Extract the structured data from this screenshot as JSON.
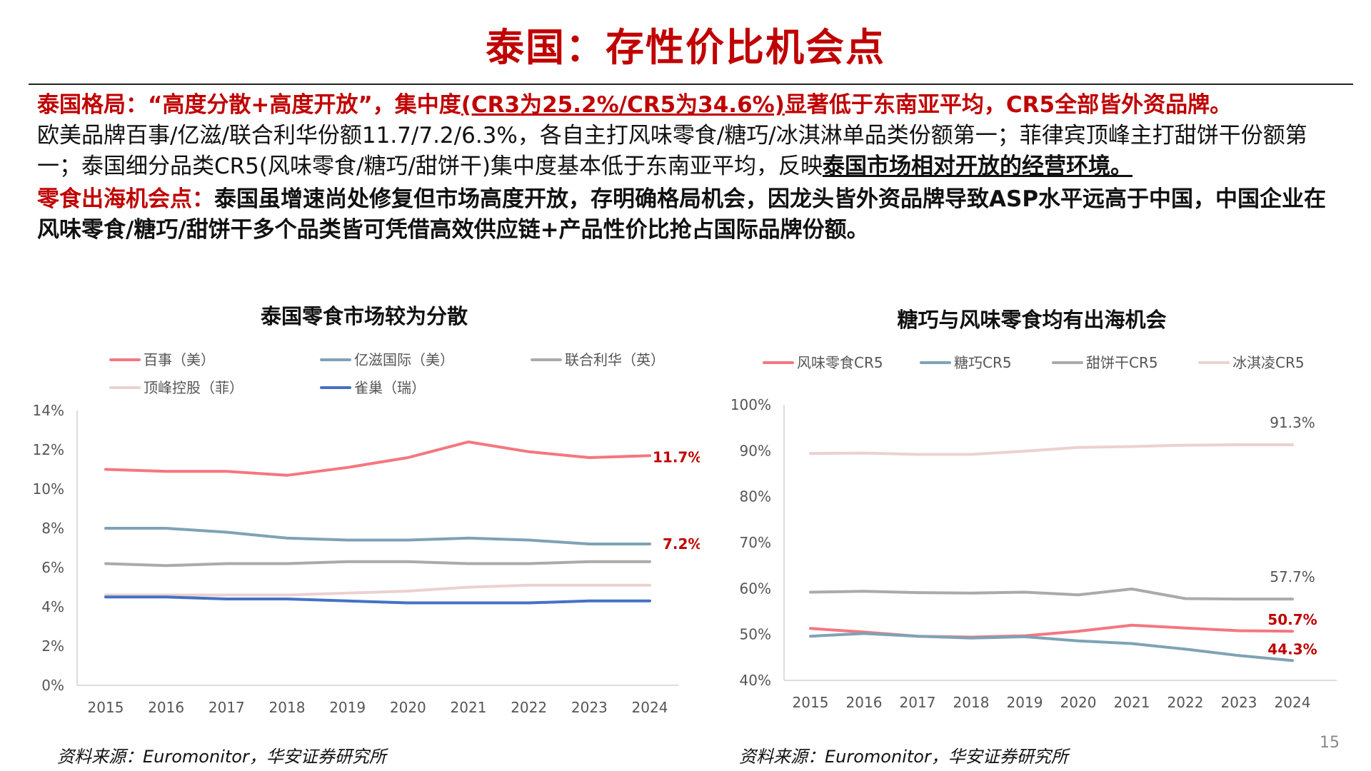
{
  "page": {
    "title": "泰国：存性价比机会点",
    "page_number": "15"
  },
  "text": {
    "p1_label": "泰国格局：",
    "p1_lead": "“高度分散+高度开放”，集中度",
    "p1_underlined": "(CR3为25.2%/CR5为34.6%)",
    "p1_tail": "显著低于东南亚平均，CR5全部皆外资品牌。",
    "p2_normal": "欧美品牌百事/亿滋/联合利华份额11.7/7.2/6.3%，各自主打风味零食/糖巧/冰淇淋单品类份额第一；菲律宾顶峰主打甜饼干份额第一；泰国细分品类CR5(风味零食/糖巧/甜饼干)集中度基本低于东南亚平均，反映",
    "p2_emph": "泰国市场相对开放的经营环境。",
    "p3_label": "零食出海机会点：",
    "p3_body": "泰国虽增速尚处修复但市场高度开放，存明确格局机会，因龙头皆外资品牌导致ASP水平远高于中国，中国企业在风味零食/糖巧/甜饼干多个品类皆可凭借高效供应链+产品性价比抢占国际品牌份额。"
  },
  "source_left": "资料来源：Euromonitor，华安证券研究所",
  "source_right": "资料来源：Euromonitor，华安证券研究所",
  "chart_data": [
    {
      "type": "line",
      "title": "泰国零食市场较为分散",
      "x": [
        "2015",
        "2016",
        "2017",
        "2018",
        "2019",
        "2020",
        "2021",
        "2022",
        "2023",
        "2024"
      ],
      "ylim": [
        0,
        14
      ],
      "yticks": [
        "0%",
        "2%",
        "4%",
        "6%",
        "8%",
        "10%",
        "12%",
        "14%"
      ],
      "ytick_values": [
        0,
        2,
        4,
        6,
        8,
        10,
        12,
        14
      ],
      "grid": false,
      "legend": "top",
      "series": [
        {
          "name": "百事（美）",
          "color": "#f4777f",
          "values": [
            11.0,
            10.9,
            10.9,
            10.7,
            11.1,
            11.6,
            12.4,
            11.9,
            11.6,
            11.7
          ],
          "end_label": "11.7%",
          "end_label_color": "#c00000"
        },
        {
          "name": "亿滋国际（美）",
          "color": "#7fa2b5",
          "values": [
            8.0,
            8.0,
            7.8,
            7.5,
            7.4,
            7.4,
            7.5,
            7.4,
            7.2,
            7.2
          ],
          "end_label": "7.2%",
          "end_label_color": "#c00000"
        },
        {
          "name": "联合利华（英）",
          "color": "#aaaaaa",
          "values": [
            6.2,
            6.1,
            6.2,
            6.2,
            6.3,
            6.3,
            6.2,
            6.2,
            6.3,
            6.3
          ]
        },
        {
          "name": "顶峰控股（菲）",
          "color": "#ecd1d1",
          "values": [
            4.6,
            4.6,
            4.6,
            4.6,
            4.7,
            4.8,
            5.0,
            5.1,
            5.1,
            5.1
          ]
        },
        {
          "name": "雀巢（瑞）",
          "color": "#4472c4",
          "values": [
            4.5,
            4.5,
            4.4,
            4.4,
            4.3,
            4.2,
            4.2,
            4.2,
            4.3,
            4.3
          ]
        }
      ]
    },
    {
      "type": "line",
      "title": "糖巧与风味零食均有出海机会",
      "x": [
        "2015",
        "2016",
        "2017",
        "2018",
        "2019",
        "2020",
        "2021",
        "2022",
        "2023",
        "2024"
      ],
      "ylim": [
        40,
        100
      ],
      "yticks": [
        "40%",
        "50%",
        "60%",
        "70%",
        "80%",
        "90%",
        "100%"
      ],
      "ytick_values": [
        40,
        50,
        60,
        70,
        80,
        90,
        100
      ],
      "grid": false,
      "legend": "top",
      "series": [
        {
          "name": "风味零食CR5",
          "color": "#f4777f",
          "values": [
            51.3,
            50.5,
            49.6,
            49.4,
            49.7,
            50.7,
            52.0,
            51.4,
            50.8,
            50.7
          ],
          "end_label": "50.7%",
          "end_label_color": "#c00000"
        },
        {
          "name": "糖巧CR5",
          "color": "#7fa2b5",
          "values": [
            49.6,
            50.2,
            49.6,
            49.2,
            49.5,
            48.6,
            48.0,
            46.8,
            45.4,
            44.3
          ],
          "end_label": "44.3%",
          "end_label_color": "#c00000"
        },
        {
          "name": "甜饼干CR5",
          "color": "#aaaaaa",
          "values": [
            59.2,
            59.4,
            59.1,
            59.0,
            59.2,
            58.6,
            59.9,
            57.8,
            57.7,
            57.7
          ],
          "end_label": "57.7%",
          "end_label_color": "#555555"
        },
        {
          "name": "冰淇凌CR5",
          "color": "#ecd1d1",
          "values": [
            89.4,
            89.5,
            89.2,
            89.2,
            89.9,
            90.7,
            90.9,
            91.2,
            91.3,
            91.3
          ],
          "end_label": "91.3%",
          "end_label_color": "#555555"
        }
      ]
    }
  ]
}
